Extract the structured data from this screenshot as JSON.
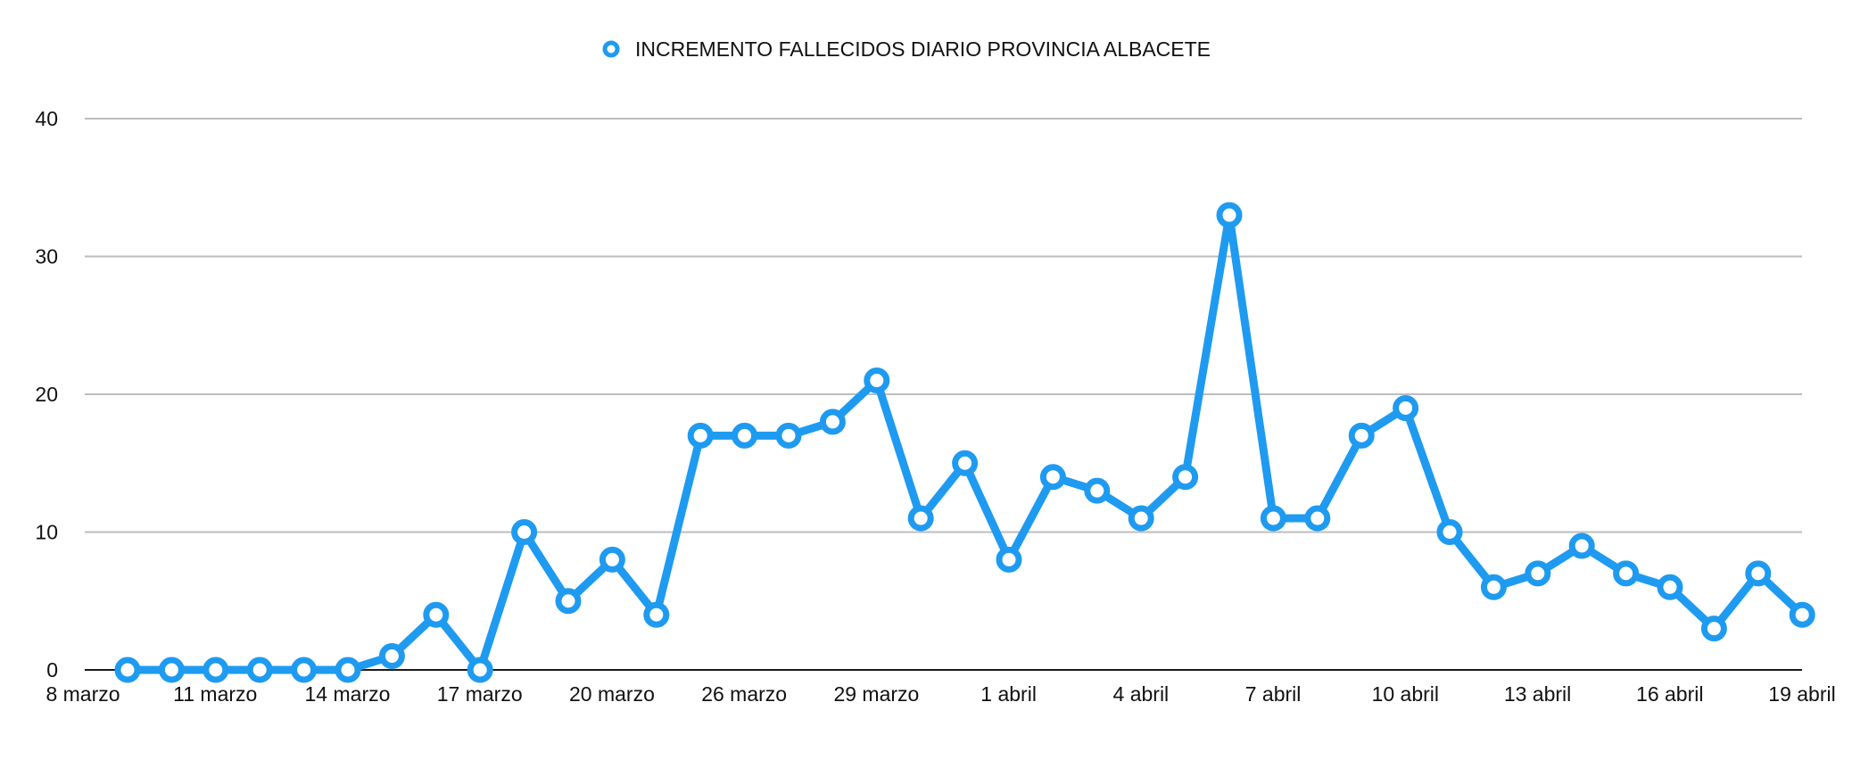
{
  "chart_data": {
    "type": "line",
    "title": "",
    "xlabel": "",
    "ylabel": "",
    "ylim": [
      0,
      40
    ],
    "yticks": [
      0,
      10,
      20,
      30,
      40
    ],
    "grid": true,
    "legend": "top-center",
    "series_color": "#1E9BF0",
    "x_tick_labels": [
      "8 marzo",
      "11 marzo",
      "14 marzo",
      "17 marzo",
      "20 marzo",
      "26 marzo",
      "29 marzo",
      "1 abril",
      "4 abril",
      "7 abril",
      "10 abril",
      "13 abril",
      "16 abril",
      "19 abril"
    ],
    "series": [
      {
        "name": "INCREMENTO FALLECIDOS DIARIO PROVINCIA ALBACETE",
        "values": [
          0,
          0,
          0,
          0,
          0,
          0,
          1,
          4,
          0,
          10,
          5,
          8,
          4,
          17,
          17,
          17,
          18,
          21,
          11,
          15,
          8,
          14,
          13,
          11,
          14,
          33,
          11,
          11,
          17,
          19,
          10,
          6,
          7,
          9,
          7,
          6,
          3,
          7,
          4
        ]
      }
    ]
  }
}
